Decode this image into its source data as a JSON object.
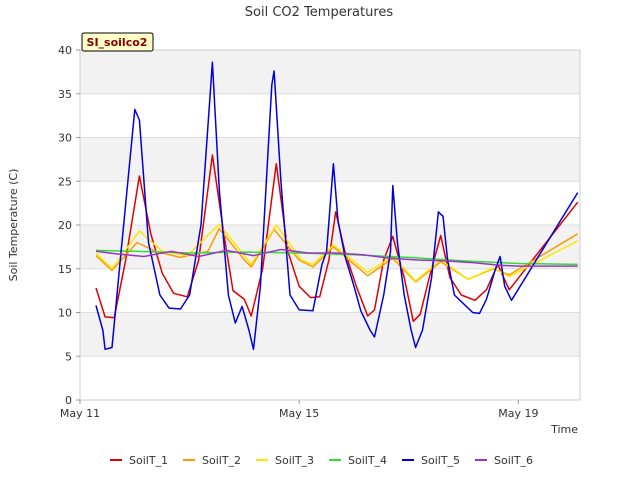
{
  "chart_data": {
    "type": "line",
    "title": "Soil CO2 Temperatures",
    "xlabel": "Time",
    "ylabel": "Soil Temperature (C)",
    "site_label": "SI_soilco2",
    "xlim": [
      "2024-05-11",
      "2024-05-20 03:00"
    ],
    "ylim": [
      0,
      40
    ],
    "yticks": [
      0,
      5,
      10,
      15,
      20,
      25,
      30,
      35,
      40
    ],
    "xticks": [
      {
        "date": "2024-05-11",
        "label": "May 11"
      },
      {
        "date": "2024-05-15",
        "label": "May 15"
      },
      {
        "date": "2024-05-19",
        "label": "May 19"
      }
    ],
    "grid": true,
    "legend_position": "bottom",
    "series": [
      {
        "name": "SoilT_1",
        "color": "#e00000",
        "points": [
          [
            "2024-05-11 07:00",
            12.8
          ],
          [
            "2024-05-11 11:00",
            9.5
          ],
          [
            "2024-05-11 15:00",
            9.4
          ],
          [
            "2024-05-11 20:00",
            16.0
          ],
          [
            "2024-05-12 02:00",
            25.6
          ],
          [
            "2024-05-12 07:00",
            19.0
          ],
          [
            "2024-05-12 12:00",
            14.5
          ],
          [
            "2024-05-12 17:00",
            12.2
          ],
          [
            "2024-05-12 23:00",
            11.8
          ],
          [
            "2024-05-13 04:00",
            16.0
          ],
          [
            "2024-05-13 10:00",
            28.0
          ],
          [
            "2024-05-13 15:00",
            19.0
          ],
          [
            "2024-05-13 19:00",
            12.5
          ],
          [
            "2024-05-14 00:00",
            11.5
          ],
          [
            "2024-05-14 03:00",
            9.6
          ],
          [
            "2024-05-14 08:00",
            15.0
          ],
          [
            "2024-05-14 14:00",
            27.0
          ],
          [
            "2024-05-14 19:00",
            17.0
          ],
          [
            "2024-05-15 00:00",
            13.0
          ],
          [
            "2024-05-15 05:00",
            11.7
          ],
          [
            "2024-05-15 09:00",
            11.8
          ],
          [
            "2024-05-15 13:00",
            16.0
          ],
          [
            "2024-05-15 16:00",
            21.5
          ],
          [
            "2024-05-15 20:00",
            17.0
          ],
          [
            "2024-05-16 01:00",
            13.0
          ],
          [
            "2024-05-16 06:00",
            9.6
          ],
          [
            "2024-05-16 09:00",
            10.3
          ],
          [
            "2024-05-16 13:00",
            16.0
          ],
          [
            "2024-05-16 17:00",
            18.7
          ],
          [
            "2024-05-16 22:00",
            14.0
          ],
          [
            "2024-05-17 02:00",
            9.0
          ],
          [
            "2024-05-17 05:00",
            9.8
          ],
          [
            "2024-05-17 09:00",
            14.0
          ],
          [
            "2024-05-17 14:00",
            18.8
          ],
          [
            "2024-05-17 18:00",
            14.0
          ],
          [
            "2024-05-17 23:00",
            12.0
          ],
          [
            "2024-05-18 05:00",
            11.4
          ],
          [
            "2024-05-18 10:00",
            12.6
          ],
          [
            "2024-05-18 15:00",
            15.5
          ],
          [
            "2024-05-18 20:00",
            12.6
          ],
          [
            "2024-05-20 02:00",
            22.6
          ]
        ]
      },
      {
        "name": "SoilT_2",
        "color": "#ff9900",
        "points": [
          [
            "2024-05-11 07:00",
            16.5
          ],
          [
            "2024-05-11 14:00",
            14.8
          ],
          [
            "2024-05-12 01:00",
            18.0
          ],
          [
            "2024-05-12 09:00",
            17.0
          ],
          [
            "2024-05-12 20:00",
            16.3
          ],
          [
            "2024-05-13 08:00",
            17.0
          ],
          [
            "2024-05-13 13:00",
            19.6
          ],
          [
            "2024-05-14 00:00",
            16.0
          ],
          [
            "2024-05-14 03:00",
            15.2
          ],
          [
            "2024-05-14 13:00",
            19.5
          ],
          [
            "2024-05-15 00:00",
            16.0
          ],
          [
            "2024-05-15 06:00",
            15.2
          ],
          [
            "2024-05-15 15:00",
            17.5
          ],
          [
            "2024-05-16 06:00",
            14.2
          ],
          [
            "2024-05-16 17:00",
            16.2
          ],
          [
            "2024-05-17 03:00",
            13.5
          ],
          [
            "2024-05-17 14:00",
            15.8
          ],
          [
            "2024-05-18 02:00",
            13.8
          ],
          [
            "2024-05-18 13:00",
            15.0
          ],
          [
            "2024-05-18 20:00",
            14.3
          ],
          [
            "2024-05-20 02:00",
            19.0
          ]
        ]
      },
      {
        "name": "SoilT_3",
        "color": "#ffe600",
        "points": [
          [
            "2024-05-11 07:00",
            16.8
          ],
          [
            "2024-05-11 14:00",
            15.0
          ],
          [
            "2024-05-12 02:00",
            19.3
          ],
          [
            "2024-05-12 12:00",
            17.0
          ],
          [
            "2024-05-12 23:00",
            16.5
          ],
          [
            "2024-05-13 13:00",
            20.1
          ],
          [
            "2024-05-14 03:00",
            15.5
          ],
          [
            "2024-05-14 14:00",
            20.0
          ],
          [
            "2024-05-15 01:00",
            16.0
          ],
          [
            "2024-05-15 06:00",
            15.5
          ],
          [
            "2024-05-15 15:00",
            17.7
          ],
          [
            "2024-05-16 06:00",
            14.6
          ],
          [
            "2024-05-16 17:00",
            16.4
          ],
          [
            "2024-05-17 03:00",
            13.6
          ],
          [
            "2024-05-17 14:00",
            16.0
          ],
          [
            "2024-05-18 02:00",
            13.8
          ],
          [
            "2024-05-18 13:00",
            15.1
          ],
          [
            "2024-05-18 20:00",
            14.1
          ],
          [
            "2024-05-20 02:00",
            18.2
          ]
        ]
      },
      {
        "name": "SoilT_4",
        "color": "#33dd33",
        "points": [
          [
            "2024-05-11 07:00",
            17.1
          ],
          [
            "2024-05-12 00:00",
            17.0
          ],
          [
            "2024-05-13 00:00",
            16.8
          ],
          [
            "2024-05-14 00:00",
            16.9
          ],
          [
            "2024-05-15 00:00",
            16.8
          ],
          [
            "2024-05-16 00:00",
            16.6
          ],
          [
            "2024-05-17 00:00",
            16.3
          ],
          [
            "2024-05-18 00:00",
            15.9
          ],
          [
            "2024-05-19 00:00",
            15.6
          ],
          [
            "2024-05-20 02:00",
            15.5
          ]
        ]
      },
      {
        "name": "SoilT_5",
        "color": "#0000dd",
        "points": [
          [
            "2024-05-11 07:00",
            10.8
          ],
          [
            "2024-05-11 10:00",
            8.0
          ],
          [
            "2024-05-11 11:00",
            5.8
          ],
          [
            "2024-05-11 14:00",
            6.0
          ],
          [
            "2024-05-11 18:00",
            17.0
          ],
          [
            "2024-05-12 00:00",
            33.2
          ],
          [
            "2024-05-12 02:00",
            32.0
          ],
          [
            "2024-05-12 06:00",
            18.0
          ],
          [
            "2024-05-12 11:00",
            12.0
          ],
          [
            "2024-05-12 15:00",
            10.5
          ],
          [
            "2024-05-12 20:00",
            10.4
          ],
          [
            "2024-05-13 00:00",
            12.0
          ],
          [
            "2024-05-13 05:00",
            20.0
          ],
          [
            "2024-05-13 10:00",
            38.6
          ],
          [
            "2024-05-13 13:00",
            24.0
          ],
          [
            "2024-05-13 17:00",
            12.0
          ],
          [
            "2024-05-13 20:00",
            8.8
          ],
          [
            "2024-05-13 23:00",
            10.7
          ],
          [
            "2024-05-14 02:00",
            8.0
          ],
          [
            "2024-05-14 04:00",
            5.8
          ],
          [
            "2024-05-14 07:00",
            13.0
          ],
          [
            "2024-05-14 12:00",
            36.0
          ],
          [
            "2024-05-14 13:00",
            37.6
          ],
          [
            "2024-05-14 16:00",
            25.0
          ],
          [
            "2024-05-14 20:00",
            12.0
          ],
          [
            "2024-05-15 00:00",
            10.3
          ],
          [
            "2024-05-15 06:00",
            10.2
          ],
          [
            "2024-05-15 10:00",
            15.5
          ],
          [
            "2024-05-15 12:00",
            17.0
          ],
          [
            "2024-05-15 15:00",
            27.0
          ],
          [
            "2024-05-15 17:00",
            20.5
          ],
          [
            "2024-05-15 20:00",
            16.5
          ],
          [
            "2024-05-16 00:00",
            13.0
          ],
          [
            "2024-05-16 03:00",
            10.2
          ],
          [
            "2024-05-16 07:00",
            8.0
          ],
          [
            "2024-05-16 09:00",
            7.2
          ],
          [
            "2024-05-16 13:00",
            12.0
          ],
          [
            "2024-05-16 16:00",
            17.0
          ],
          [
            "2024-05-16 17:00",
            24.5
          ],
          [
            "2024-05-16 19:00",
            18.0
          ],
          [
            "2024-05-16 22:00",
            12.0
          ],
          [
            "2024-05-17 01:00",
            8.0
          ],
          [
            "2024-05-17 03:00",
            6.0
          ],
          [
            "2024-05-17 06:00",
            8.0
          ],
          [
            "2024-05-17 10:00",
            14.0
          ],
          [
            "2024-05-17 13:00",
            21.5
          ],
          [
            "2024-05-17 15:00",
            21.0
          ],
          [
            "2024-05-17 17:00",
            16.0
          ],
          [
            "2024-05-17 20:00",
            12.0
          ],
          [
            "2024-05-18 00:00",
            11.0
          ],
          [
            "2024-05-18 04:00",
            10.0
          ],
          [
            "2024-05-18 07:00",
            9.9
          ],
          [
            "2024-05-18 10:00",
            11.5
          ],
          [
            "2024-05-18 14:00",
            15.0
          ],
          [
            "2024-05-18 16:00",
            16.4
          ],
          [
            "2024-05-18 18:00",
            13.0
          ],
          [
            "2024-05-18 21:00",
            11.4
          ],
          [
            "2024-05-20 02:00",
            23.7
          ]
        ]
      },
      {
        "name": "SoilT_6",
        "color": "#9933cc",
        "points": [
          [
            "2024-05-11 07:00",
            17.0
          ],
          [
            "2024-05-11 16:00",
            16.7
          ],
          [
            "2024-05-12 04:00",
            16.4
          ],
          [
            "2024-05-12 16:00",
            17.0
          ],
          [
            "2024-05-13 04:00",
            16.4
          ],
          [
            "2024-05-13 16:00",
            17.1
          ],
          [
            "2024-05-14 04:00",
            16.5
          ],
          [
            "2024-05-14 16:00",
            17.2
          ],
          [
            "2024-05-15 04:00",
            16.8
          ],
          [
            "2024-05-15 16:00",
            16.8
          ],
          [
            "2024-05-16 04:00",
            16.6
          ],
          [
            "2024-05-16 16:00",
            16.2
          ],
          [
            "2024-05-17 04:00",
            16.0
          ],
          [
            "2024-05-17 16:00",
            15.9
          ],
          [
            "2024-05-18 04:00",
            15.7
          ],
          [
            "2024-05-18 16:00",
            15.4
          ],
          [
            "2024-05-19 00:00",
            15.3
          ],
          [
            "2024-05-20 02:00",
            15.3
          ]
        ]
      }
    ]
  }
}
